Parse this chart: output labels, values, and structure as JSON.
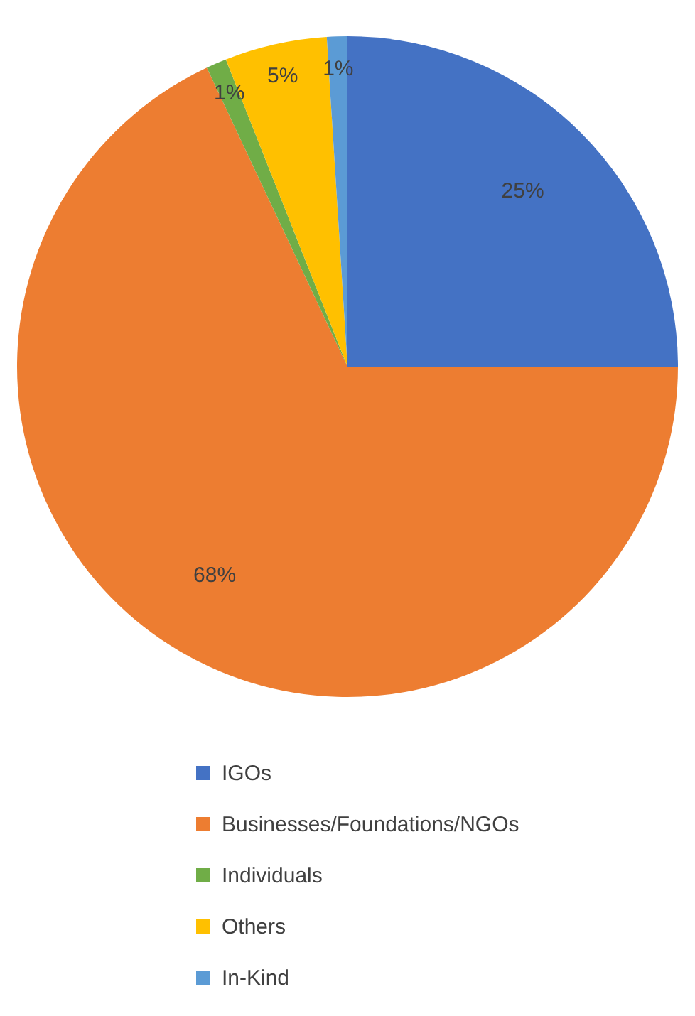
{
  "chart_data": {
    "type": "pie",
    "categories": [
      "IGOs",
      "Businesses/Foundations/NGOs",
      "Individuals",
      "Others",
      "In-Kind"
    ],
    "values": [
      25,
      68,
      1,
      5,
      1
    ],
    "colors": [
      "#4472c4",
      "#ed7d31",
      "#70ad47",
      "#ffc000",
      "#5b9bd5"
    ],
    "value_labels": [
      "25%",
      "68%",
      "1%",
      "5%",
      "1%"
    ],
    "legend": "bottom"
  }
}
